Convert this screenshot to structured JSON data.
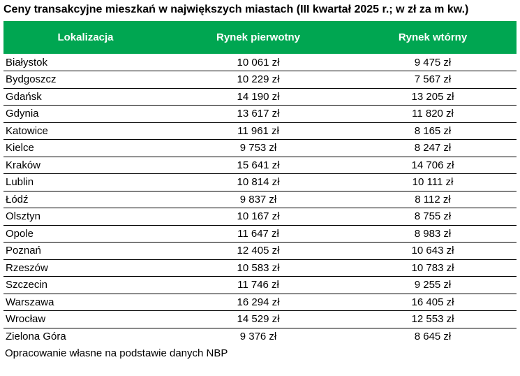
{
  "page": {
    "title": "Ceny transakcyjne mieszkań w największych miastach (III kwartał 2025 r.; w zł za m kw.)",
    "footer": "Opracowanie własne na podstawie danych NBP"
  },
  "colors": {
    "header_bg": "#00a651",
    "header_text": "#ffffff",
    "body_text": "#000000",
    "row_border": "#000000"
  },
  "table": {
    "columns": [
      "Lokalizacja",
      "Rynek pierwotny",
      "Rynek wtórny"
    ],
    "rows": [
      {
        "city": "Białystok",
        "primary": "10 061 zł",
        "secondary": "9 475 zł"
      },
      {
        "city": "Bydgoszcz",
        "primary": "10 229 zł",
        "secondary": "7 567 zł"
      },
      {
        "city": "Gdańsk",
        "primary": "14 190 zł",
        "secondary": "13 205 zł"
      },
      {
        "city": "Gdynia",
        "primary": "13 617 zł",
        "secondary": "11 820 zł"
      },
      {
        "city": "Katowice",
        "primary": "11 961 zł",
        "secondary": "8 165 zł"
      },
      {
        "city": "Kielce",
        "primary": "9 753 zł",
        "secondary": "8 247 zł"
      },
      {
        "city": "Kraków",
        "primary": "15 641 zł",
        "secondary": "14 706 zł"
      },
      {
        "city": "Lublin",
        "primary": "10 814 zł",
        "secondary": "10 111 zł"
      },
      {
        "city": "Łódź",
        "primary": "9 837 zł",
        "secondary": "8 112 zł"
      },
      {
        "city": "Olsztyn",
        "primary": "10 167 zł",
        "secondary": "8 755 zł"
      },
      {
        "city": "Opole",
        "primary": "11 647 zł",
        "secondary": "8 983 zł"
      },
      {
        "city": "Poznań",
        "primary": "12 405 zł",
        "secondary": "10 643 zł"
      },
      {
        "city": "Rzeszów",
        "primary": "10 583 zł",
        "secondary": "10 783 zł"
      },
      {
        "city": "Szczecin",
        "primary": "11 746 zł",
        "secondary": "9 255 zł"
      },
      {
        "city": "Warszawa",
        "primary": "16 294 zł",
        "secondary": "16 405 zł"
      },
      {
        "city": "Wrocław",
        "primary": "14 529 zł",
        "secondary": "12 553 zł"
      },
      {
        "city": "Zielona Góra",
        "primary": "9 376 zł",
        "secondary": "8 645 zł"
      }
    ]
  },
  "chart_data": {
    "type": "table",
    "title": "Ceny transakcyjne mieszkań w największych miastach (III kwartał 2025 r.; w zł za m kw.)",
    "columns": [
      "Lokalizacja",
      "Rynek pierwotny",
      "Rynek wtórny"
    ],
    "categories": [
      "Białystok",
      "Bydgoszcz",
      "Gdańsk",
      "Gdynia",
      "Katowice",
      "Kielce",
      "Kraków",
      "Lublin",
      "Łódź",
      "Olsztyn",
      "Opole",
      "Poznań",
      "Rzeszów",
      "Szczecin",
      "Warszawa",
      "Wrocław",
      "Zielona Góra"
    ],
    "series": [
      {
        "name": "Rynek pierwotny",
        "unit": "zł/m kw.",
        "values": [
          10061,
          10229,
          14190,
          13617,
          11961,
          9753,
          15641,
          10814,
          9837,
          10167,
          11647,
          12405,
          10583,
          11746,
          16294,
          14529,
          9376
        ]
      },
      {
        "name": "Rynek wtórny",
        "unit": "zł/m kw.",
        "values": [
          9475,
          7567,
          13205,
          11820,
          8165,
          8247,
          14706,
          10111,
          8112,
          8755,
          8983,
          10643,
          10783,
          9255,
          16405,
          12553,
          8645
        ]
      }
    ],
    "source_note": "Opracowanie własne na podstawie danych NBP"
  }
}
